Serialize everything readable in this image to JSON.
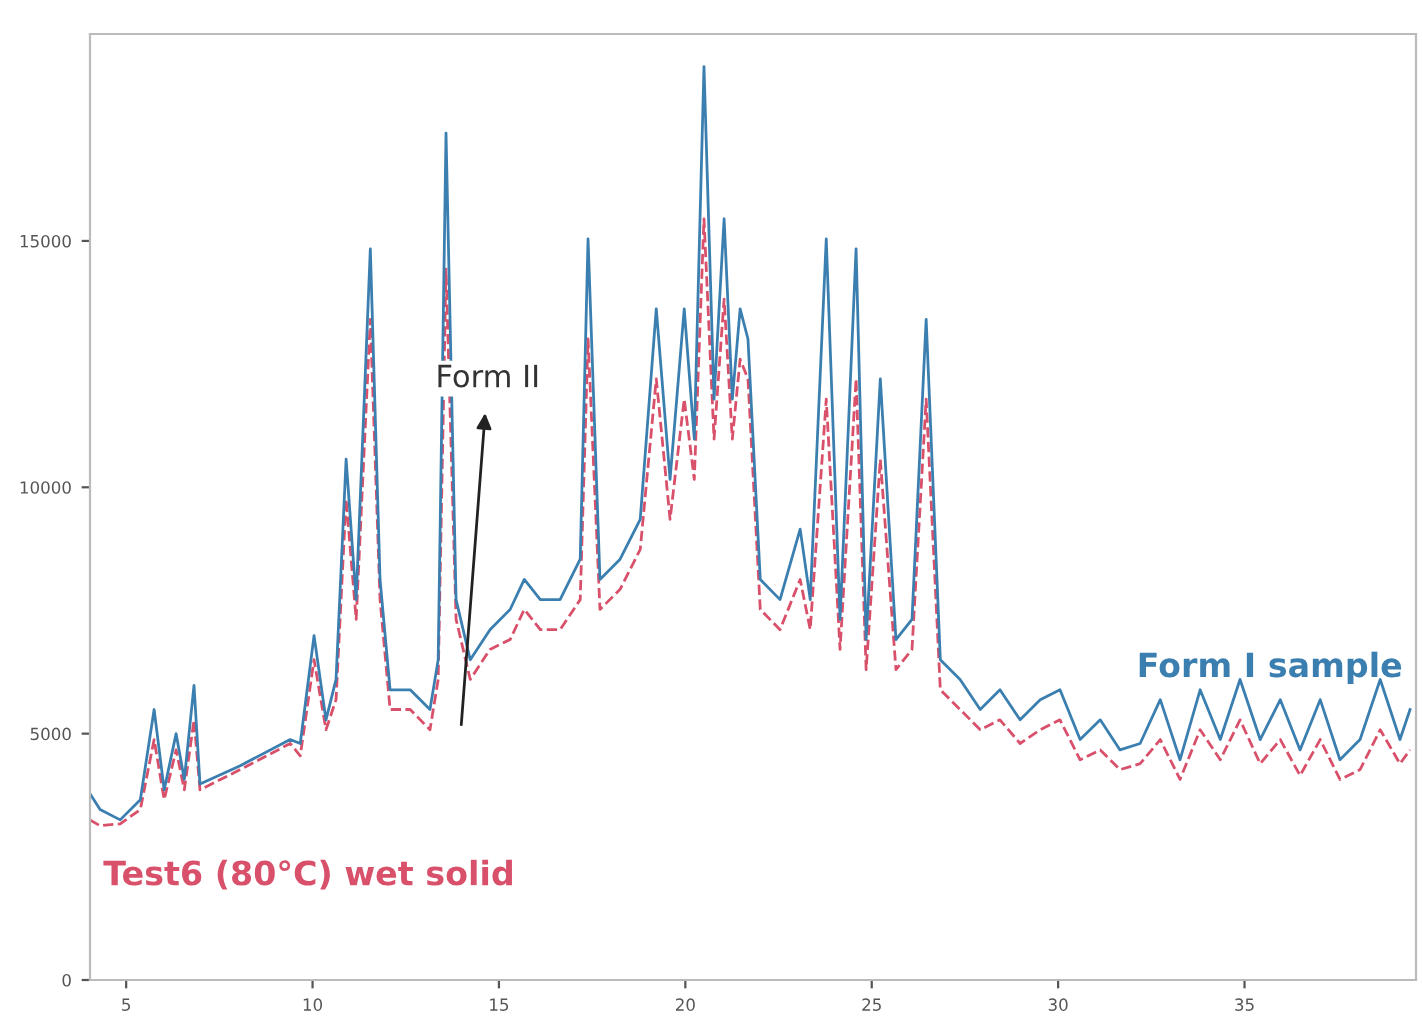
{
  "chart_data": {
    "type": "line",
    "x": [
      4.03,
      4.3,
      4.84,
      5.38,
      5.75,
      6.02,
      6.34,
      6.56,
      6.82,
      6.98,
      8.06,
      9.4,
      9.67,
      10.04,
      10.36,
      10.63,
      10.9,
      11.17,
      11.55,
      11.81,
      12.08,
      12.62,
      13.15,
      13.37,
      13.58,
      13.85,
      14.23,
      14.76,
      15.3,
      15.68,
      16.11,
      16.64,
      17.18,
      17.39,
      17.71,
      18.25,
      18.79,
      19.22,
      19.59,
      19.97,
      20.24,
      20.5,
      20.77,
      21.04,
      21.26,
      21.47,
      21.68,
      22.01,
      22.54,
      23.08,
      23.35,
      23.78,
      24.15,
      24.58,
      24.85,
      25.23,
      25.65,
      26.08,
      26.46,
      26.84,
      27.37,
      27.91,
      28.44,
      28.98,
      29.52,
      30.05,
      30.59,
      31.13,
      31.66,
      32.2,
      32.74,
      33.27,
      33.81,
      34.35,
      34.88,
      35.42,
      35.96,
      36.49,
      37.03,
      37.56,
      38.1,
      38.64,
      39.17,
      39.44
    ],
    "series": [
      {
        "name": "Form I sample",
        "color": "#3b7fb0",
        "values": [
          3780,
          3460,
          3250,
          3660,
          5490,
          3860,
          5000,
          4070,
          5980,
          3980,
          4350,
          4880,
          4800,
          6990,
          5280,
          6100,
          10570,
          7720,
          14840,
          8130,
          5890,
          5890,
          5490,
          6500,
          17190,
          7720,
          6500,
          7110,
          7520,
          8130,
          7720,
          7720,
          8540,
          15040,
          8130,
          8540,
          9350,
          13620,
          10160,
          13620,
          10980,
          18540,
          11790,
          15450,
          11790,
          13620,
          13010,
          8130,
          7720,
          9150,
          7720,
          15040,
          7320,
          14840,
          6910,
          12200,
          6910,
          7320,
          13410,
          6500,
          6100,
          5490,
          5890,
          5280,
          5690,
          5890,
          4880,
          5280,
          4670,
          4800,
          5690,
          4470,
          5890,
          4880,
          6100,
          4880,
          5690,
          4670,
          5690,
          4470,
          4880,
          6100,
          4880,
          5490
        ]
      },
      {
        "name": "Test6 (80°C) wet solid",
        "color": "#d8506a",
        "line_style": "dashed",
        "values": [
          3250,
          3130,
          3170,
          3460,
          4880,
          3660,
          4670,
          3860,
          5280,
          3860,
          4270,
          4800,
          4550,
          6500,
          5080,
          5690,
          9760,
          7320,
          13410,
          7720,
          5490,
          5490,
          5080,
          6100,
          14430,
          7320,
          6100,
          6710,
          6910,
          7520,
          7110,
          7110,
          7720,
          13010,
          7520,
          7930,
          8740,
          12200,
          9350,
          11790,
          10160,
          15450,
          10980,
          13820,
          10980,
          12600,
          12200,
          7520,
          7110,
          8130,
          7110,
          11790,
          6710,
          12200,
          6300,
          10570,
          6300,
          6710,
          11790,
          5890,
          5490,
          5080,
          5280,
          4800,
          5080,
          5280,
          4470,
          4670,
          4270,
          4390,
          4880,
          4070,
          5080,
          4470,
          5280,
          4390,
          4880,
          4150,
          4880,
          4070,
          4270,
          5080,
          4390,
          4670
        ]
      }
    ],
    "xlim": [
      4.03,
      39.6
    ],
    "ylim": [
      0,
      19200
    ],
    "xticks": [
      5,
      10,
      15,
      20,
      25,
      30,
      35
    ],
    "yticks": [
      0,
      5000,
      10000,
      15000
    ],
    "grid": false,
    "legend": false,
    "annotations": [
      "Form II"
    ]
  }
}
